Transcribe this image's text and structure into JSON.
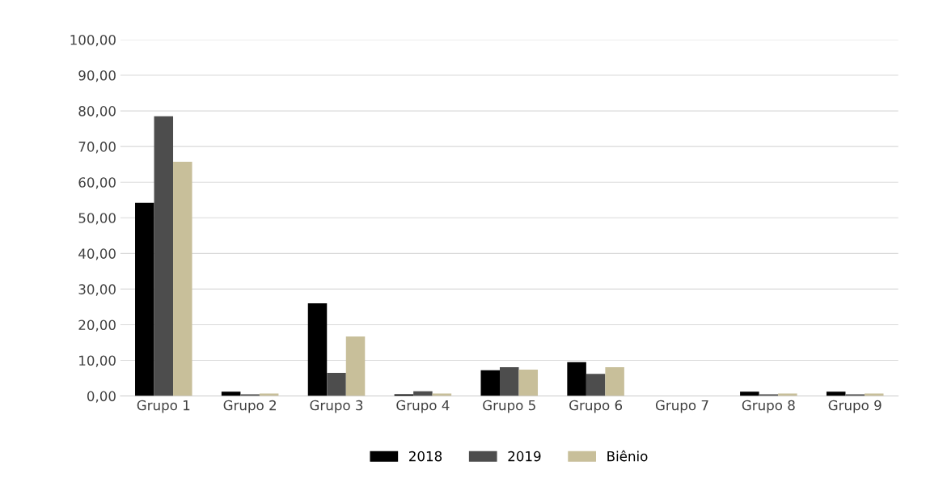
{
  "chart_data": {
    "type": "bar",
    "categories": [
      "Grupo 1",
      "Grupo 2",
      "Grupo 3",
      "Grupo 4",
      "Grupo 5",
      "Grupo 6",
      "Grupo 7",
      "Grupo 8",
      "Grupo 9"
    ],
    "series": [
      {
        "name": "2018",
        "color": "#000000",
        "values": [
          54.2,
          1.2,
          26.0,
          0.5,
          7.2,
          9.5,
          0.0,
          1.2,
          1.2
        ]
      },
      {
        "name": "2019",
        "color": "#4d4d4d",
        "values": [
          78.5,
          0.5,
          6.5,
          1.3,
          8.1,
          6.2,
          0.0,
          0.5,
          0.5
        ]
      },
      {
        "name": "Biênio",
        "color": "#c8bf9a",
        "values": [
          65.7,
          0.7,
          16.7,
          0.7,
          7.4,
          8.1,
          0.0,
          0.7,
          0.7
        ]
      }
    ],
    "ylim": [
      0,
      100
    ],
    "yticks": [
      {
        "value": 0,
        "label": "0,00"
      },
      {
        "value": 10,
        "label": "10,00"
      },
      {
        "value": 20,
        "label": "20,00"
      },
      {
        "value": 30,
        "label": "30,00"
      },
      {
        "value": 40,
        "label": "40,00"
      },
      {
        "value": 50,
        "label": "50,00"
      },
      {
        "value": 60,
        "label": "60,00"
      },
      {
        "value": 70,
        "label": "70,00"
      },
      {
        "value": 80,
        "label": "80,00"
      },
      {
        "value": 90,
        "label": "90,00"
      },
      {
        "value": 100,
        "label": "100,00"
      }
    ],
    "grid": "y",
    "legend": "bottom"
  }
}
